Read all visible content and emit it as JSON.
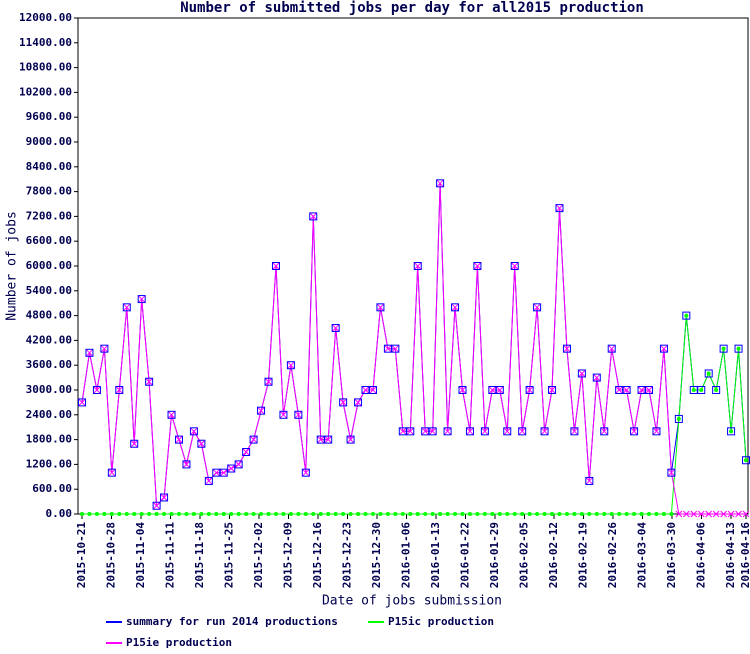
{
  "chart_data": {
    "type": "line",
    "title": "Number of submitted jobs per day for all2015 production",
    "x_label": "Date of jobs submission",
    "y_label": "Number of jobs",
    "x": [
      "2015-10-21",
      "2015-10-23",
      "2015-10-25",
      "2015-10-27",
      "2015-10-29",
      "2015-10-31",
      "2015-11-02",
      "2015-11-04",
      "2015-11-06",
      "2015-11-08",
      "2015-11-10",
      "2015-11-12",
      "2015-11-14",
      "2015-11-16",
      "2015-11-18",
      "2015-11-20",
      "2015-11-22",
      "2015-11-24",
      "2015-11-26",
      "2015-11-28",
      "2015-11-30",
      "2015-12-02",
      "2015-12-04",
      "2015-12-06",
      "2015-12-08",
      "2015-12-10",
      "2015-12-12",
      "2015-12-14",
      "2015-12-16",
      "2015-12-18",
      "2015-12-20",
      "2015-12-22",
      "2015-12-24",
      "2015-12-26",
      "2015-12-28",
      "2015-12-30",
      "2016-01-01",
      "2016-01-03",
      "2016-01-05",
      "2016-01-07",
      "2016-01-09",
      "2016-01-11",
      "2016-01-13",
      "2016-01-15",
      "2016-01-17",
      "2016-01-19",
      "2016-01-21",
      "2016-01-23",
      "2016-01-25",
      "2016-01-27",
      "2016-01-29",
      "2016-01-31",
      "2016-02-02",
      "2016-02-04",
      "2016-02-06",
      "2016-02-08",
      "2016-02-10",
      "2016-02-12",
      "2016-02-14",
      "2016-02-16",
      "2016-02-18",
      "2016-02-20",
      "2016-02-22",
      "2016-02-24",
      "2016-02-26",
      "2016-02-28",
      "2016-03-01",
      "2016-03-03",
      "2016-03-05",
      "2016-03-07",
      "2016-03-09",
      "2016-03-11",
      "2016-03-13",
      "2016-03-15",
      "2016-03-17",
      "2016-03-19",
      "2016-03-21",
      "2016-03-23",
      "2016-03-25",
      "2016-03-27",
      "2016-03-29",
      "2016-03-31",
      "2016-04-02",
      "2016-04-04",
      "2016-04-06",
      "2016-04-08",
      "2016-04-10",
      "2016-04-12",
      "2016-04-14",
      "2016-04-16"
    ],
    "series": [
      {
        "name": "summary for run 2014 productions",
        "color": "#0000ff",
        "marker": "square",
        "values": [
          2700,
          3900,
          3000,
          4000,
          1000,
          3000,
          5000,
          1700,
          5200,
          3200,
          200,
          400,
          2400,
          1800,
          1200,
          2000,
          1700,
          800,
          1000,
          1000,
          1100,
          1200,
          1500,
          1800,
          2500,
          3200,
          6000,
          2400,
          3600,
          2400,
          1000,
          7200,
          1800,
          1800,
          4500,
          2700,
          1800,
          2700,
          3000,
          3000,
          5000,
          4000,
          4000,
          2000,
          2000,
          6000,
          2000,
          2000,
          8000,
          2000,
          5000,
          3000,
          2000,
          6000,
          2000,
          3000,
          3000,
          2000,
          6000,
          2000,
          3000,
          5000,
          2000,
          3000,
          7400,
          4000,
          2000,
          3400,
          800,
          3300,
          2000,
          4000,
          3000,
          3000,
          2000,
          3000,
          3000,
          2000,
          4000,
          1000,
          2300,
          4800,
          3000,
          3000,
          3400,
          3000,
          4000,
          2000,
          4000,
          1300
        ]
      },
      {
        "name": "P15ic production",
        "color": "#00ff00",
        "marker": "dot",
        "values": [
          0,
          0,
          0,
          0,
          0,
          0,
          0,
          0,
          0,
          0,
          0,
          0,
          0,
          0,
          0,
          0,
          0,
          0,
          0,
          0,
          0,
          0,
          0,
          0,
          0,
          0,
          0,
          0,
          0,
          0,
          0,
          0,
          0,
          0,
          0,
          0,
          0,
          0,
          0,
          0,
          0,
          0,
          0,
          0,
          0,
          0,
          0,
          0,
          0,
          0,
          0,
          0,
          0,
          0,
          0,
          0,
          0,
          0,
          0,
          0,
          0,
          0,
          0,
          0,
          0,
          0,
          0,
          0,
          0,
          0,
          0,
          0,
          0,
          0,
          0,
          0,
          0,
          0,
          0,
          0,
          2300,
          4800,
          3000,
          3000,
          3400,
          3000,
          4000,
          2000,
          4000,
          1300
        ]
      },
      {
        "name": "P15ie production",
        "color": "#ff00ff",
        "marker": "cross",
        "values": [
          2700,
          3900,
          3000,
          4000,
          1000,
          3000,
          5000,
          1700,
          5200,
          3200,
          200,
          400,
          2400,
          1800,
          1200,
          2000,
          1700,
          800,
          1000,
          1000,
          1100,
          1200,
          1500,
          1800,
          2500,
          3200,
          6000,
          2400,
          3600,
          2400,
          1000,
          7200,
          1800,
          1800,
          4500,
          2700,
          1800,
          2700,
          3000,
          3000,
          5000,
          4000,
          4000,
          2000,
          2000,
          6000,
          2000,
          2000,
          8000,
          2000,
          5000,
          3000,
          2000,
          6000,
          2000,
          3000,
          3000,
          2000,
          6000,
          2000,
          3000,
          5000,
          2000,
          3000,
          7400,
          4000,
          2000,
          3400,
          800,
          3300,
          2000,
          4000,
          3000,
          3000,
          2000,
          3000,
          3000,
          2000,
          4000,
          1000,
          0,
          0,
          0,
          0,
          0,
          0,
          0,
          0,
          0,
          0
        ]
      }
    ],
    "xticks": [
      "2015-10-21",
      "2015-10-28",
      "2015-11-04",
      "2015-11-11",
      "2015-11-18",
      "2015-11-25",
      "2015-12-02",
      "2015-12-09",
      "2015-12-16",
      "2015-12-23",
      "2015-12-30",
      "2016-01-06",
      "2016-01-13",
      "2016-01-22",
      "2016-01-29",
      "2016-02-05",
      "2016-02-12",
      "2016-02-19",
      "2016-02-26",
      "2016-03-04",
      "2016-03-30",
      "2016-04-06",
      "2016-04-13",
      "2016-04-16"
    ],
    "ylim": [
      0,
      12000
    ],
    "yticks": [
      {
        "value": 0,
        "label": "0.00"
      },
      {
        "value": 600,
        "label": "600.00"
      },
      {
        "value": 1200,
        "label": "1200.00"
      },
      {
        "value": 1800,
        "label": "1800.00"
      },
      {
        "value": 2400,
        "label": "2400.00"
      },
      {
        "value": 3000,
        "label": "3000.00"
      },
      {
        "value": 3600,
        "label": "3600.00"
      },
      {
        "value": 4200,
        "label": "4200.00"
      },
      {
        "value": 4800,
        "label": "4800.00"
      },
      {
        "value": 5400,
        "label": "5400.00"
      },
      {
        "value": 6000,
        "label": "6000.00"
      },
      {
        "value": 6600,
        "label": "6600.00"
      },
      {
        "value": 7200,
        "label": "7200.00"
      },
      {
        "value": 7800,
        "label": "7800.00"
      },
      {
        "value": 8400,
        "label": "8400.00"
      },
      {
        "value": 9000,
        "label": "9000.00"
      },
      {
        "value": 9600,
        "label": "9600.00"
      },
      {
        "value": 10200,
        "label": "10200.00"
      },
      {
        "value": 10800,
        "label": "10800.00"
      },
      {
        "value": 11400,
        "label": "11400.00"
      },
      {
        "value": 12000,
        "label": "12000.00"
      }
    ],
    "grid": false
  }
}
